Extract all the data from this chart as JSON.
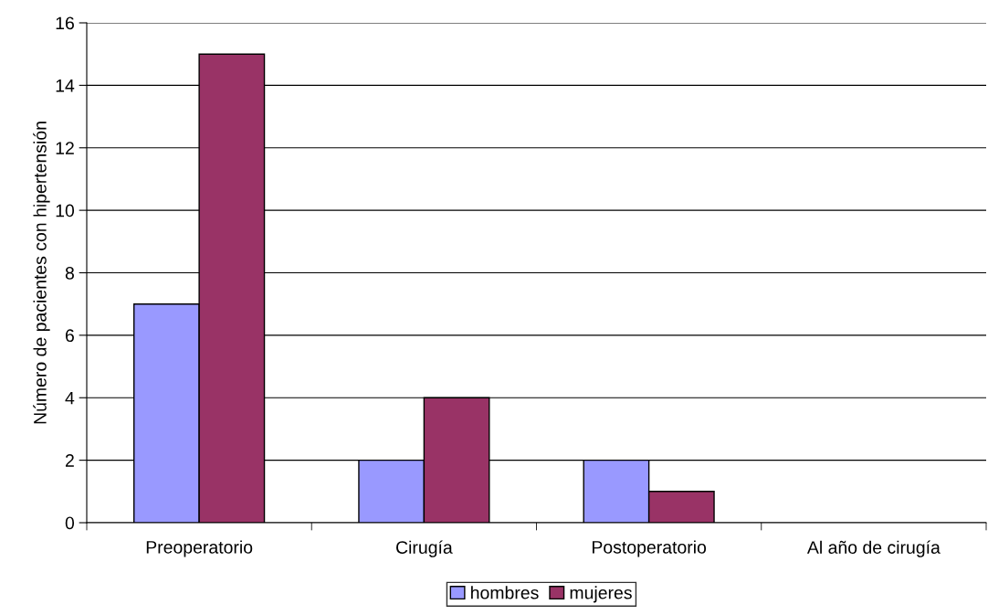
{
  "chart_data": {
    "type": "bar",
    "ylabel": "Número de pacientes con hipertensión",
    "categories": [
      "Preoperatorio",
      "Cirugía",
      "Postoperatorio",
      "Al año de cirugía"
    ],
    "series": [
      {
        "name": "hombres",
        "color": "#9999ff",
        "values": [
          7,
          2,
          2,
          0
        ]
      },
      {
        "name": "mujeres",
        "color": "#993366",
        "values": [
          15,
          4,
          1,
          0
        ]
      }
    ],
    "ylim": [
      0,
      16
    ],
    "yticks": [
      0,
      2,
      4,
      6,
      8,
      10,
      12,
      14,
      16
    ],
    "grid": "y",
    "legend": "bottom"
  }
}
